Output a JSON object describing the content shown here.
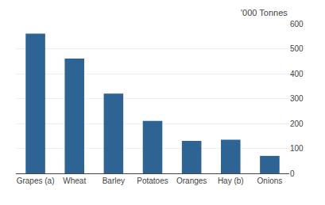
{
  "chart_data": {
    "type": "bar",
    "ylabel": "'000 Tonnes",
    "categories": [
      "Grapes (a)",
      "Wheat",
      "Barley",
      "Potatoes",
      "Oranges",
      "Hay (b)",
      "Onions"
    ],
    "values": [
      560,
      460,
      320,
      210,
      130,
      135,
      70
    ],
    "color": "#2e6494",
    "ylim": [
      0,
      600
    ],
    "yticks": [
      0,
      100,
      200,
      300,
      400,
      500,
      600
    ],
    "grid": true
  }
}
